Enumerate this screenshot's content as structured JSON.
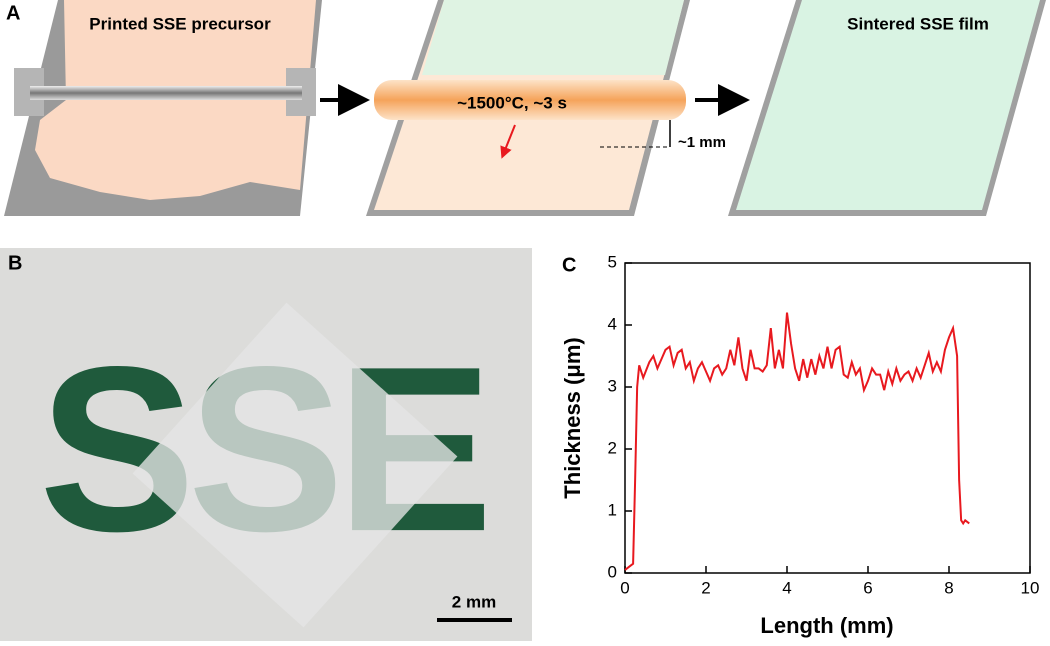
{
  "panel_a": {
    "label": "A",
    "step1_caption": "Printed SSE precursor",
    "heating_caption": "~1500°C, ~3 s",
    "gap_caption": "~1 mm",
    "step3_caption": "Sintered SSE film"
  },
  "panel_b": {
    "label": "B",
    "photo_text": "SSE",
    "scale_bar": "2 mm"
  },
  "chart_data": {
    "type": "line",
    "panel_label": "C",
    "xlabel": "Length (mm)",
    "ylabel": "Thickness (μm)",
    "color": "#e8191f",
    "x": [
      0,
      0.1,
      0.2,
      0.25,
      0.3,
      0.35,
      0.45,
      0.6,
      0.7,
      0.8,
      0.9,
      1.0,
      1.1,
      1.2,
      1.3,
      1.4,
      1.5,
      1.6,
      1.7,
      1.8,
      1.9,
      2.0,
      2.1,
      2.2,
      2.3,
      2.4,
      2.5,
      2.6,
      2.7,
      2.8,
      2.9,
      3.0,
      3.1,
      3.2,
      3.3,
      3.4,
      3.5,
      3.6,
      3.7,
      3.8,
      3.9,
      4.0,
      4.1,
      4.2,
      4.3,
      4.4,
      4.5,
      4.6,
      4.7,
      4.8,
      4.9,
      5.0,
      5.1,
      5.2,
      5.3,
      5.4,
      5.5,
      5.6,
      5.7,
      5.8,
      5.9,
      6.0,
      6.1,
      6.2,
      6.3,
      6.4,
      6.5,
      6.6,
      6.7,
      6.8,
      6.9,
      7.0,
      7.1,
      7.2,
      7.3,
      7.4,
      7.5,
      7.6,
      7.7,
      7.8,
      7.9,
      8.0,
      8.1,
      8.2,
      8.25,
      8.3,
      8.35,
      8.4,
      8.5
    ],
    "values": [
      0.05,
      0.1,
      0.15,
      1.5,
      3.0,
      3.35,
      3.15,
      3.4,
      3.5,
      3.3,
      3.45,
      3.6,
      3.65,
      3.35,
      3.55,
      3.6,
      3.3,
      3.4,
      3.1,
      3.3,
      3.4,
      3.25,
      3.1,
      3.3,
      3.35,
      3.2,
      3.3,
      3.6,
      3.35,
      3.8,
      3.3,
      3.1,
      3.6,
      3.3,
      3.3,
      3.25,
      3.35,
      3.95,
      3.3,
      3.6,
      3.3,
      4.2,
      3.7,
      3.3,
      3.1,
      3.45,
      3.15,
      3.45,
      3.2,
      3.5,
      3.3,
      3.65,
      3.3,
      3.6,
      3.65,
      3.2,
      3.15,
      3.4,
      3.2,
      3.3,
      2.95,
      3.1,
      3.3,
      3.2,
      3.2,
      2.95,
      3.25,
      3.05,
      3.3,
      3.1,
      3.2,
      3.25,
      3.1,
      3.3,
      3.15,
      3.35,
      3.55,
      3.25,
      3.4,
      3.25,
      3.6,
      3.8,
      3.95,
      3.5,
      1.5,
      0.85,
      0.8,
      0.85,
      0.8
    ],
    "xlim": [
      0,
      10
    ],
    "ylim": [
      0,
      5
    ],
    "xticks": [
      0,
      2,
      4,
      6,
      8,
      10
    ],
    "yticks": [
      0,
      1,
      2,
      3,
      4,
      5
    ]
  }
}
